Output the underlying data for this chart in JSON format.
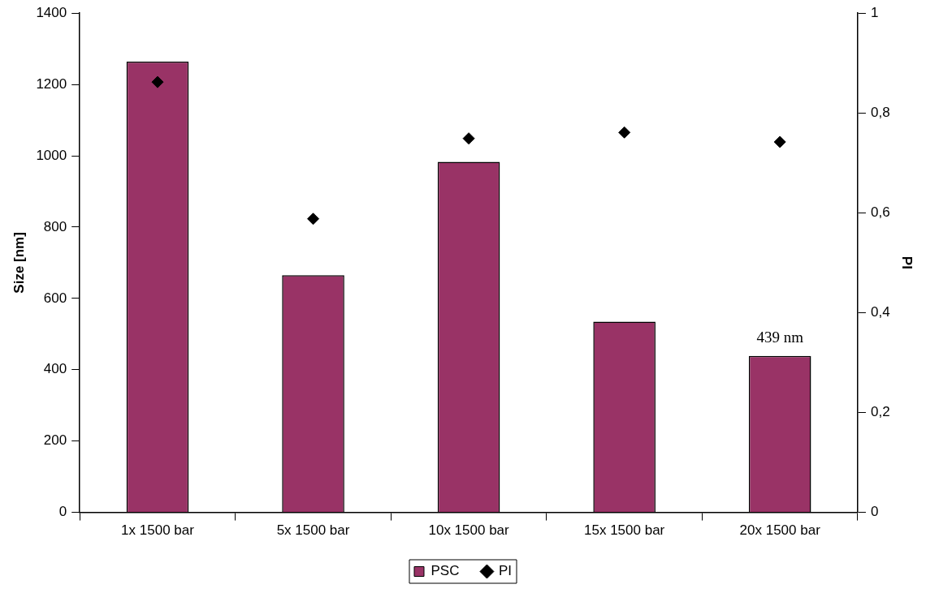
{
  "chart_data": {
    "type": "bar",
    "xlabel": null,
    "ylabel": "Size [nm]",
    "y2label": "PI",
    "categories": [
      "1x 1500 bar",
      "5x 1500 bar",
      "10x 1500 bar",
      "15x 1500 bar",
      "20x 1500 bar"
    ],
    "series": [
      {
        "name": "PSC",
        "color": "#993366",
        "values": [
          1264,
          665,
          983,
          535,
          439
        ]
      },
      {
        "name": "PI",
        "type": "scatter",
        "axis": "y2",
        "color": "#000000",
        "x": [
          "1x 1500 bar",
          "5x 1500 bar",
          "10x 1500 bar",
          "15x 1500 bar",
          "20x 1500 bar"
        ],
        "values": [
          0.862,
          0.588,
          0.749,
          0.761,
          0.742
        ]
      }
    ],
    "ylim": [
      0,
      1400
    ],
    "yticks": [
      0,
      200,
      400,
      600,
      800,
      1000,
      1200,
      1400
    ],
    "y2lim": [
      0,
      1
    ],
    "y2ticks": [
      0,
      {
        "value": 0.2,
        "label": "0,2"
      },
      {
        "value": 0.4,
        "label": "0,4"
      },
      {
        "value": 0.6,
        "label": "0,6"
      },
      {
        "value": 0.8,
        "label": "0,8"
      },
      1
    ],
    "annotations": [
      {
        "text": "439 nm",
        "x": "20x 1500 bar",
        "y": 439
      }
    ],
    "legend": "bottom",
    "marker": "diamond"
  }
}
